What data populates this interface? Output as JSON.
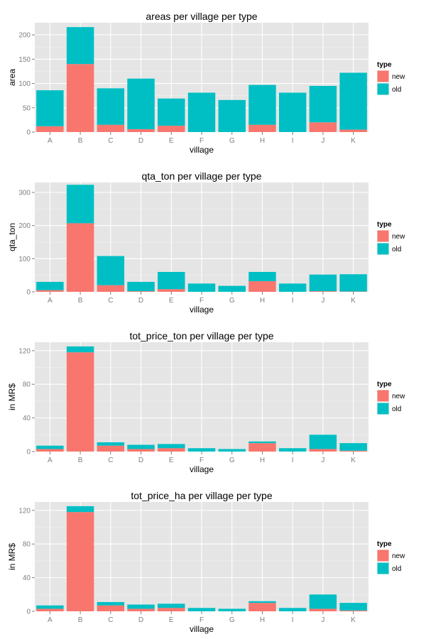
{
  "colors": {
    "new": "#F8766D",
    "old": "#00BFC4",
    "panel": "#E5E5E5",
    "grid_major": "#FFFFFF",
    "grid_minor": "#F2F2F2",
    "tick_text": "#7F7F7F"
  },
  "chart_data": [
    {
      "type": "bar",
      "stacked": true,
      "title": "areas per village per type",
      "xlabel": "village",
      "ylabel": "area",
      "categories": [
        "A",
        "B",
        "C",
        "D",
        "E",
        "F",
        "G",
        "H",
        "I",
        "J",
        "K"
      ],
      "ylim": [
        0,
        225
      ],
      "yticks": [
        0,
        50,
        100,
        150,
        200
      ],
      "grid": true,
      "legend": {
        "title": "type",
        "position": "right",
        "entries": [
          "new",
          "old"
        ]
      },
      "series": [
        {
          "name": "new",
          "values": [
            12,
            140,
            15,
            6,
            13,
            0,
            0,
            15,
            0,
            20,
            5
          ]
        },
        {
          "name": "old",
          "values": [
            74,
            76,
            75,
            104,
            56,
            81,
            66,
            82,
            81,
            75,
            117
          ]
        }
      ]
    },
    {
      "type": "bar",
      "stacked": true,
      "title": "qta_ton per village per type",
      "xlabel": "village",
      "ylabel": "qta_ton",
      "categories": [
        "A",
        "B",
        "C",
        "D",
        "E",
        "F",
        "G",
        "H",
        "I",
        "J",
        "K"
      ],
      "ylim": [
        0,
        330
      ],
      "yticks": [
        0,
        100,
        200,
        300
      ],
      "grid": true,
      "legend": {
        "title": "type",
        "position": "right",
        "entries": [
          "new",
          "old"
        ]
      },
      "series": [
        {
          "name": "new",
          "values": [
            5,
            207,
            20,
            2,
            8,
            0,
            0,
            32,
            0,
            2,
            1
          ]
        },
        {
          "name": "old",
          "values": [
            25,
            116,
            88,
            28,
            52,
            25,
            18,
            28,
            25,
            50,
            52
          ]
        }
      ]
    },
    {
      "type": "bar",
      "stacked": true,
      "title": "tot_price_ton per village per type",
      "xlabel": "village",
      "ylabel": "in MR$",
      "categories": [
        "A",
        "B",
        "C",
        "D",
        "E",
        "F",
        "G",
        "H",
        "I",
        "J",
        "K"
      ],
      "ylim": [
        0,
        130
      ],
      "yticks": [
        0,
        40,
        80,
        120
      ],
      "grid": true,
      "legend": {
        "title": "type",
        "position": "right",
        "entries": [
          "new",
          "old"
        ]
      },
      "series": [
        {
          "name": "new",
          "values": [
            3,
            118,
            7,
            3,
            4,
            0,
            0,
            10,
            0,
            3,
            1
          ]
        },
        {
          "name": "old",
          "values": [
            4,
            7,
            4,
            5,
            5,
            4,
            3,
            2,
            4,
            17,
            9
          ]
        }
      ]
    },
    {
      "type": "bar",
      "stacked": true,
      "title": "tot_price_ha per village per type",
      "xlabel": "village",
      "ylabel": "in MR$",
      "categories": [
        "A",
        "B",
        "C",
        "D",
        "E",
        "F",
        "G",
        "H",
        "I",
        "J",
        "K"
      ],
      "ylim": [
        0,
        130
      ],
      "yticks": [
        0,
        40,
        80,
        120
      ],
      "grid": true,
      "legend": {
        "title": "type",
        "position": "right",
        "entries": [
          "new",
          "old"
        ]
      },
      "series": [
        {
          "name": "new",
          "values": [
            3,
            118,
            7,
            3,
            4,
            0,
            0,
            10,
            0,
            3,
            1
          ]
        },
        {
          "name": "old",
          "values": [
            4,
            7,
            4,
            5,
            5,
            4,
            3,
            2,
            4,
            17,
            9
          ]
        }
      ]
    }
  ]
}
